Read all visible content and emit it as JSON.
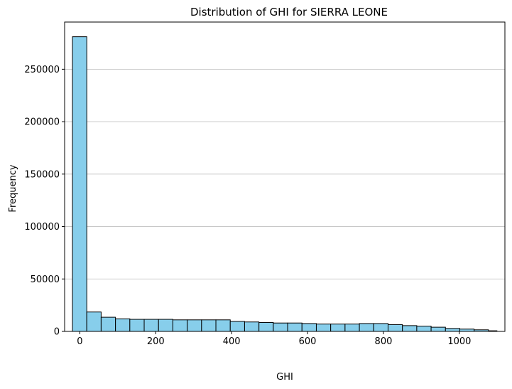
{
  "chart_data": {
    "type": "bar",
    "subtype": "histogram",
    "title": "Distribution of GHI for SIERRA LEONE",
    "xlabel": "GHI",
    "ylabel": "Frequency",
    "xlim": [
      -40,
      1120
    ],
    "ylim": [
      0,
      295000
    ],
    "xticks": [
      0,
      200,
      400,
      600,
      800,
      1000
    ],
    "yticks": [
      0,
      50000,
      100000,
      150000,
      200000,
      250000
    ],
    "grid": "y",
    "bar_color": "#87CEEB",
    "edge_color": "#000000",
    "grid_color": "#c0c0c0",
    "bins": [
      {
        "x0": -19.4,
        "x1": 18.4,
        "value": 281000
      },
      {
        "x0": 18.4,
        "x1": 56.2,
        "value": 18500
      },
      {
        "x0": 56.2,
        "x1": 94.0,
        "value": 13500
      },
      {
        "x0": 94.0,
        "x1": 131.8,
        "value": 12000
      },
      {
        "x0": 131.8,
        "x1": 169.6,
        "value": 11500
      },
      {
        "x0": 169.6,
        "x1": 207.4,
        "value": 11500
      },
      {
        "x0": 207.4,
        "x1": 245.2,
        "value": 11500
      },
      {
        "x0": 245.2,
        "x1": 283.0,
        "value": 11000
      },
      {
        "x0": 283.0,
        "x1": 320.8,
        "value": 11000
      },
      {
        "x0": 320.8,
        "x1": 358.6,
        "value": 11000
      },
      {
        "x0": 358.6,
        "x1": 396.4,
        "value": 11000
      },
      {
        "x0": 396.4,
        "x1": 434.2,
        "value": 9500
      },
      {
        "x0": 434.2,
        "x1": 472.0,
        "value": 9000
      },
      {
        "x0": 472.0,
        "x1": 509.8,
        "value": 8500
      },
      {
        "x0": 509.8,
        "x1": 547.6,
        "value": 8000
      },
      {
        "x0": 547.6,
        "x1": 585.4,
        "value": 8000
      },
      {
        "x0": 585.4,
        "x1": 623.2,
        "value": 7500
      },
      {
        "x0": 623.2,
        "x1": 661.0,
        "value": 7000
      },
      {
        "x0": 661.0,
        "x1": 698.8,
        "value": 7000
      },
      {
        "x0": 698.8,
        "x1": 736.6,
        "value": 7000
      },
      {
        "x0": 736.6,
        "x1": 774.4,
        "value": 7500
      },
      {
        "x0": 774.4,
        "x1": 812.2,
        "value": 7500
      },
      {
        "x0": 812.2,
        "x1": 850.0,
        "value": 6500
      },
      {
        "x0": 850.0,
        "x1": 887.8,
        "value": 5500
      },
      {
        "x0": 887.8,
        "x1": 925.6,
        "value": 5000
      },
      {
        "x0": 925.6,
        "x1": 963.4,
        "value": 4000
      },
      {
        "x0": 963.4,
        "x1": 1001.2,
        "value": 2800
      },
      {
        "x0": 1001.2,
        "x1": 1039.0,
        "value": 2200
      },
      {
        "x0": 1039.0,
        "x1": 1076.8,
        "value": 1500
      },
      {
        "x0": 1076.8,
        "x1": 1099.0,
        "value": 600
      }
    ]
  }
}
